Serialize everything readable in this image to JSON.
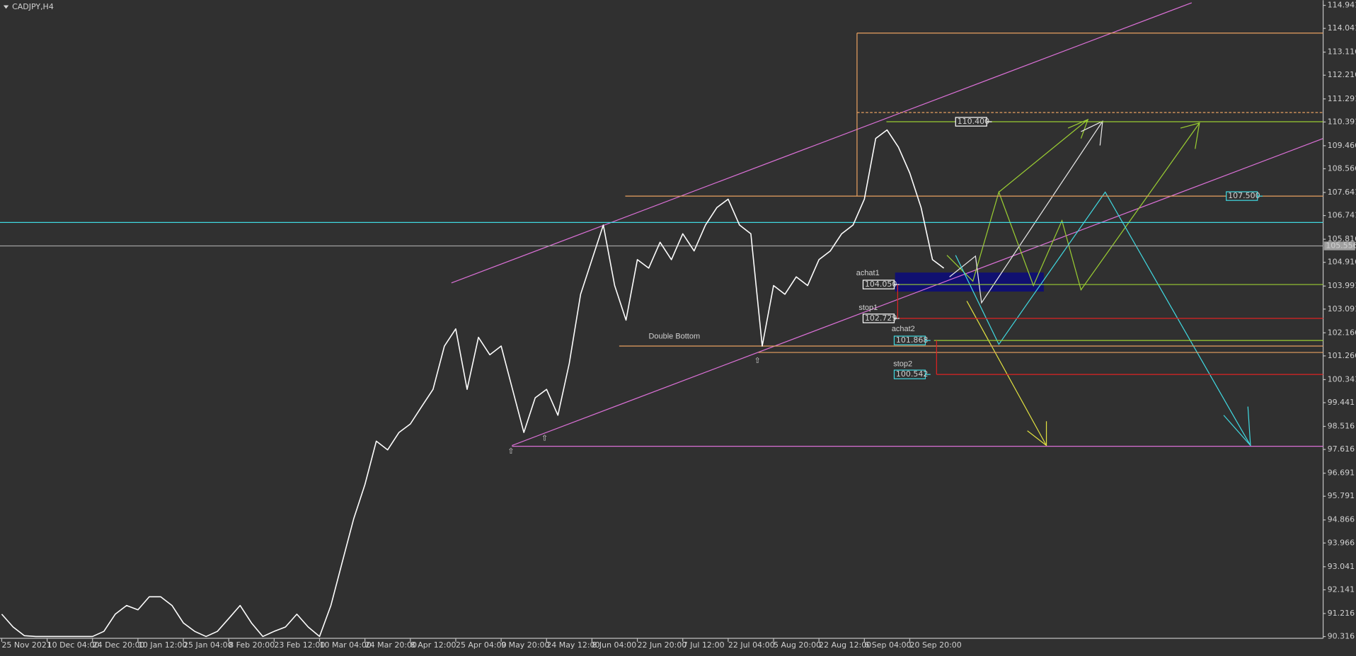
{
  "chart_data": {
    "type": "line",
    "title": "CADJPY,H4",
    "color": "#ffffff",
    "categories": [
      "25 Nov 2021",
      null,
      null,
      null,
      "10 Dec 04:00",
      null,
      null,
      null,
      "24 Dec 20:00",
      null,
      null,
      null,
      "10 Jan 12:00",
      null,
      null,
      null,
      "25 Jan 04:00",
      null,
      null,
      null,
      "8 Feb 20:00",
      null,
      null,
      null,
      "23 Feb 12:00",
      null,
      null,
      null,
      "10 Mar 04:00",
      null,
      null,
      null,
      "24 Mar 20:00",
      null,
      null,
      null,
      "8 Apr 12:00",
      null,
      null,
      null,
      "25 Apr 04:00",
      null,
      null,
      null,
      "9 May 20:00",
      null,
      null,
      null,
      "24 May 12:00",
      null,
      null,
      null,
      "8 Jun 04:00",
      null,
      null,
      null,
      "22 Jun 20:00",
      null,
      null,
      null,
      "7 Jul 12:00",
      null,
      null,
      null,
      "22 Jul 04:00",
      null,
      null,
      null,
      "5 Aug 20:00",
      null,
      null,
      null,
      "22 Aug 12:00",
      null,
      null,
      null,
      "6 Sep 04:00",
      null,
      null,
      null,
      "20 Sep 20:00",
      null,
      null,
      null,
      null,
      null,
      null,
      null,
      null,
      null,
      null,
      null,
      null,
      null,
      null,
      null,
      null,
      null,
      null,
      null,
      null,
      null,
      null,
      null,
      null,
      null,
      null,
      null,
      null,
      null,
      null,
      null,
      null,
      null,
      null,
      null,
      null
    ],
    "values": [
      91.19,
      90.69,
      90.35,
      90.32,
      90.32,
      90.32,
      90.32,
      90.32,
      90.32,
      90.52,
      91.19,
      91.53,
      91.36,
      91.87,
      91.87,
      91.53,
      90.85,
      90.52,
      90.32,
      90.52,
      91.02,
      91.53,
      90.85,
      90.32,
      90.52,
      90.69,
      91.19,
      90.69,
      90.32,
      91.53,
      93.22,
      94.9,
      96.25,
      97.94,
      97.6,
      98.28,
      98.61,
      99.29,
      99.96,
      101.65,
      102.32,
      99.96,
      101.99,
      101.31,
      101.65,
      99.96,
      98.28,
      99.63,
      99.96,
      98.95,
      100.97,
      103.67,
      105.02,
      106.37,
      104.01,
      102.66,
      105.02,
      104.69,
      105.7,
      105.02,
      106.03,
      105.36,
      106.37,
      107.05,
      107.38,
      106.37,
      106.03,
      101.65,
      104.01,
      103.67,
      104.35,
      104.01,
      105.02,
      105.36,
      106.03,
      106.37,
      107.38,
      109.75,
      110.08,
      109.41,
      108.4,
      107.05,
      105.02,
      104.69,
      null,
      null,
      null,
      null,
      null,
      null,
      null,
      null,
      null,
      null,
      null,
      null,
      null,
      null,
      null,
      null,
      null,
      null,
      null,
      null,
      null,
      null,
      null,
      null,
      null,
      null,
      null,
      null,
      null,
      null,
      null,
      null,
      null
    ],
    "ylim": [
      90.316,
      114.941
    ],
    "yticks": [
      114.941,
      114.041,
      113.116,
      112.216,
      111.291,
      110.391,
      109.466,
      108.566,
      107.641,
      106.741,
      105.816,
      104.916,
      103.991,
      103.091,
      102.166,
      101.266,
      100.341,
      99.441,
      98.516,
      97.616,
      96.691,
      95.791,
      94.866,
      93.966,
      93.041,
      92.141,
      91.216,
      90.316
    ],
    "grid": false,
    "levels": [
      {
        "value": 106.47,
        "color": "#40d8e0"
      },
      {
        "value": 105.556,
        "label": "105.556",
        "color": "#a0a0a0",
        "label_color": "#a0a0a0"
      },
      {
        "value": 110.4,
        "label": "110.400",
        "color": "#9acd32",
        "label_color": "#ffffff"
      },
      {
        "value": 107.5,
        "label": "107.500",
        "color": "#e8a060",
        "label_color": "#40d8e0"
      },
      {
        "value": 104.05,
        "label": "104.050",
        "text": "achat1",
        "color": "#9acd32",
        "label_color": "#ffffff"
      },
      {
        "value": 102.729,
        "label": "102.729",
        "text": "stop1",
        "color": "#dd2222",
        "label_color": "#ffffff"
      },
      {
        "value": 101.868,
        "label": "101.868",
        "text": "achat2",
        "color": "#9acd32",
        "label_color": "#40d8e0"
      },
      {
        "value": 100.542,
        "label": "100.542",
        "text": "stop2",
        "color": "#dd2222",
        "label_color": "#40d8e0"
      },
      {
        "value": 101.65,
        "text": "Double Bottom",
        "color": "#e8a060",
        "label_color": "#e8a060"
      },
      {
        "value": 101.4,
        "color": "#e8a060"
      },
      {
        "value": 97.74,
        "color": "#da70d6"
      },
      {
        "value": 113.86,
        "color": "#e8a060"
      },
      {
        "value": 110.76,
        "color": "#e8a060"
      }
    ]
  }
}
